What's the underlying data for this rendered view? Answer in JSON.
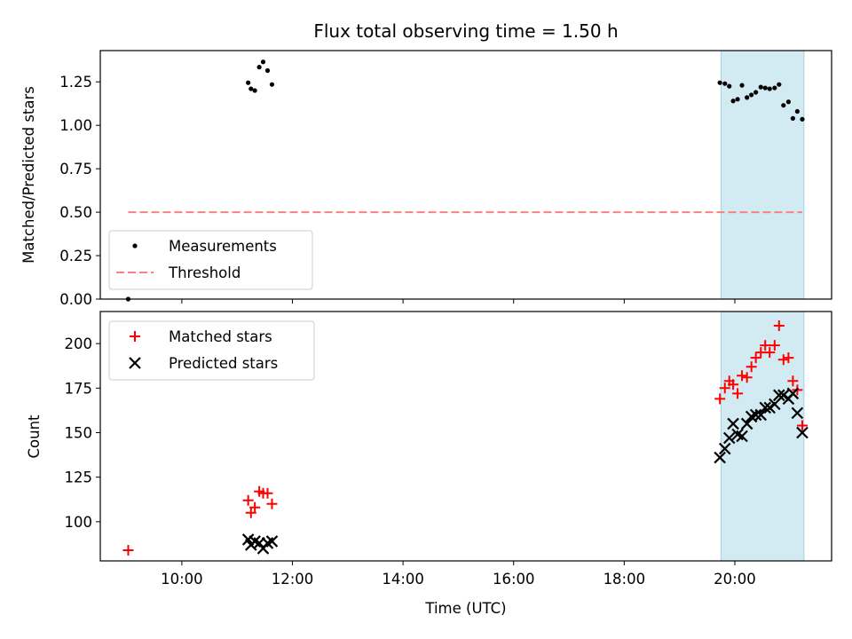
{
  "chart_data": {
    "type": "scatter",
    "title": "Flux total observing time = 1.50 h",
    "xlabel": "Time (UTC)",
    "x_ticks": [
      "10:00",
      "12:00",
      "14:00",
      "16:00",
      "18:00",
      "20:00"
    ],
    "x_tick_hours": [
      10,
      12,
      14,
      16,
      18,
      20
    ],
    "xlim_hours": [
      8.525,
      21.75
    ],
    "highlight_span_hours": [
      19.75,
      21.25
    ],
    "highlight_color": "#add8e6",
    "panels": [
      {
        "ylabel": "Matched/Predicted stars",
        "ylim": [
          0,
          1.43
        ],
        "yticks": [
          "0.00",
          "0.25",
          "0.50",
          "0.75",
          "1.00",
          "1.25"
        ],
        "ytick_values": [
          0,
          0.25,
          0.5,
          0.75,
          1.0,
          1.25
        ],
        "legend_position": "lower-left",
        "series": [
          {
            "name": "Measurements",
            "marker": "dot",
            "color": "#000000",
            "points": [
              [
                9.03,
                0.0
              ],
              [
                11.2,
                1.245
              ],
              [
                11.25,
                1.21
              ],
              [
                11.32,
                1.2
              ],
              [
                11.4,
                1.335
              ],
              [
                11.47,
                1.365
              ],
              [
                11.55,
                1.315
              ],
              [
                11.63,
                1.235
              ],
              [
                19.73,
                1.245
              ],
              [
                19.82,
                1.24
              ],
              [
                19.9,
                1.225
              ],
              [
                19.97,
                1.14
              ],
              [
                20.05,
                1.15
              ],
              [
                20.13,
                1.23
              ],
              [
                20.22,
                1.16
              ],
              [
                20.3,
                1.175
              ],
              [
                20.38,
                1.19
              ],
              [
                20.47,
                1.22
              ],
              [
                20.55,
                1.215
              ],
              [
                20.63,
                1.21
              ],
              [
                20.72,
                1.215
              ],
              [
                20.8,
                1.235
              ],
              [
                20.88,
                1.115
              ],
              [
                20.97,
                1.135
              ],
              [
                21.05,
                1.04
              ],
              [
                21.13,
                1.08
              ],
              [
                21.22,
                1.035
              ]
            ]
          },
          {
            "name": "Threshold",
            "marker": "dashed-line",
            "color": "#ff7f7f",
            "value": 0.5,
            "x_range": [
              9.03,
              21.22
            ]
          }
        ]
      },
      {
        "ylabel": "Count",
        "ylim": [
          78,
          218
        ],
        "yticks": [
          "100",
          "125",
          "150",
          "175",
          "200"
        ],
        "ytick_values": [
          100,
          125,
          150,
          175,
          200
        ],
        "legend_position": "upper-left",
        "series": [
          {
            "name": "Matched stars",
            "marker": "plus",
            "color": "#ff0000",
            "points": [
              [
                9.03,
                84
              ],
              [
                11.2,
                112
              ],
              [
                11.25,
                105
              ],
              [
                11.32,
                108
              ],
              [
                11.4,
                117
              ],
              [
                11.47,
                116
              ],
              [
                11.55,
                116
              ],
              [
                11.63,
                110
              ],
              [
                19.73,
                169
              ],
              [
                19.82,
                175
              ],
              [
                19.9,
                179
              ],
              [
                19.97,
                177
              ],
              [
                20.05,
                172
              ],
              [
                20.13,
                182
              ],
              [
                20.22,
                181
              ],
              [
                20.3,
                187
              ],
              [
                20.38,
                192
              ],
              [
                20.47,
                195
              ],
              [
                20.55,
                199
              ],
              [
                20.63,
                195
              ],
              [
                20.72,
                199
              ],
              [
                20.8,
                210
              ],
              [
                20.88,
                191
              ],
              [
                20.97,
                192
              ],
              [
                21.05,
                179
              ],
              [
                21.13,
                174
              ],
              [
                21.22,
                154
              ]
            ]
          },
          {
            "name": "Predicted stars",
            "marker": "x",
            "color": "#000000",
            "points": [
              [
                11.2,
                90
              ],
              [
                11.25,
                87
              ],
              [
                11.32,
                89
              ],
              [
                11.4,
                88
              ],
              [
                11.47,
                85
              ],
              [
                11.55,
                88
              ],
              [
                11.63,
                89
              ],
              [
                19.73,
                136
              ],
              [
                19.82,
                141
              ],
              [
                19.9,
                147
              ],
              [
                19.97,
                155
              ],
              [
                20.05,
                149
              ],
              [
                20.13,
                148
              ],
              [
                20.22,
                155
              ],
              [
                20.3,
                159
              ],
              [
                20.38,
                160
              ],
              [
                20.47,
                160
              ],
              [
                20.55,
                164
              ],
              [
                20.63,
                164
              ],
              [
                20.72,
                166
              ],
              [
                20.8,
                171
              ],
              [
                20.88,
                171
              ],
              [
                20.97,
                169
              ],
              [
                21.05,
                172
              ],
              [
                21.13,
                161
              ],
              [
                21.22,
                150
              ]
            ]
          }
        ]
      }
    ]
  }
}
